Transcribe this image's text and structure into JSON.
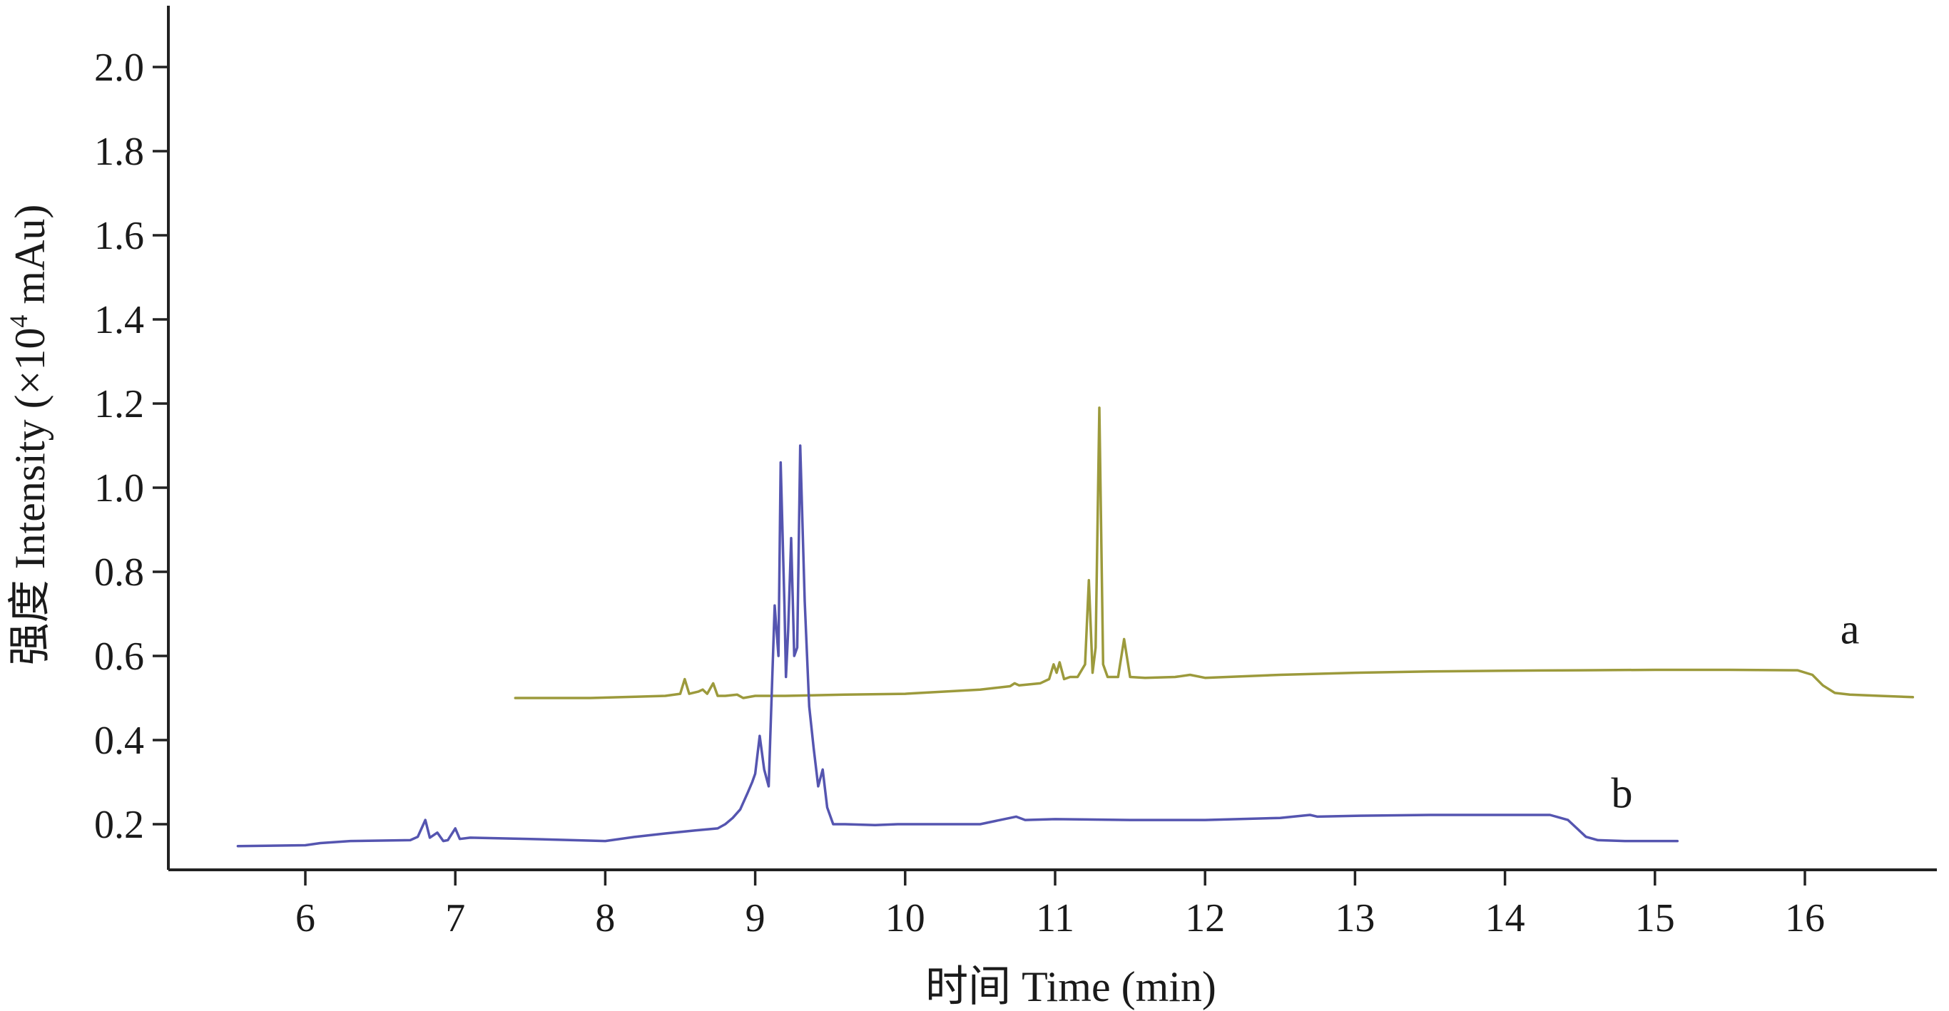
{
  "chart_data": {
    "type": "line",
    "xlabel": "时间 Time (min)",
    "ylabel_prefix": "强度 Intensity (×10",
    "ylabel_exponent": "4",
    "ylabel_suffix": " mAu)",
    "xlim": [
      5.3,
      16.9
    ],
    "ylim": [
      0.1,
      2.1
    ],
    "xticks": [
      6,
      7,
      8,
      9,
      10,
      11,
      12,
      13,
      14,
      15,
      16
    ],
    "xtick_labels": [
      "6",
      "7",
      "8",
      "9",
      "10",
      "11",
      "12",
      "13",
      "14",
      "15",
      "16"
    ],
    "yticks": [
      0.2,
      0.4,
      0.6,
      0.8,
      1.0,
      1.2,
      1.4,
      1.6,
      1.8,
      2.0
    ],
    "ytick_labels": [
      "0.2",
      "0.4",
      "0.6",
      "0.8",
      "1.0",
      "1.2",
      "1.4",
      "1.6",
      "1.8",
      "2.0"
    ],
    "grid": false,
    "legend": "none",
    "series": [
      {
        "label": "a",
        "label_position": [
          16.3,
          0.63
        ],
        "color": "#9c9a3c",
        "points": [
          [
            7.4,
            0.5
          ],
          [
            7.9,
            0.5
          ],
          [
            8.2,
            0.503
          ],
          [
            8.4,
            0.505
          ],
          [
            8.5,
            0.51
          ],
          [
            8.53,
            0.545
          ],
          [
            8.56,
            0.51
          ],
          [
            8.62,
            0.515
          ],
          [
            8.65,
            0.52
          ],
          [
            8.68,
            0.51
          ],
          [
            8.72,
            0.535
          ],
          [
            8.75,
            0.505
          ],
          [
            8.8,
            0.505
          ],
          [
            8.88,
            0.508
          ],
          [
            8.92,
            0.5
          ],
          [
            9.0,
            0.505
          ],
          [
            9.2,
            0.505
          ],
          [
            9.6,
            0.508
          ],
          [
            10.0,
            0.51
          ],
          [
            10.1,
            0.512
          ],
          [
            10.5,
            0.52
          ],
          [
            10.7,
            0.528
          ],
          [
            10.73,
            0.535
          ],
          [
            10.76,
            0.53
          ],
          [
            10.9,
            0.535
          ],
          [
            10.96,
            0.545
          ],
          [
            10.99,
            0.58
          ],
          [
            11.01,
            0.56
          ],
          [
            11.03,
            0.585
          ],
          [
            11.06,
            0.545
          ],
          [
            11.1,
            0.55
          ],
          [
            11.15,
            0.55
          ],
          [
            11.2,
            0.58
          ],
          [
            11.225,
            0.78
          ],
          [
            11.25,
            0.56
          ],
          [
            11.27,
            0.62
          ],
          [
            11.295,
            1.19
          ],
          [
            11.32,
            0.58
          ],
          [
            11.35,
            0.55
          ],
          [
            11.42,
            0.55
          ],
          [
            11.46,
            0.64
          ],
          [
            11.5,
            0.55
          ],
          [
            11.6,
            0.548
          ],
          [
            11.8,
            0.55
          ],
          [
            11.9,
            0.555
          ],
          [
            12.0,
            0.548
          ],
          [
            12.5,
            0.555
          ],
          [
            13.0,
            0.56
          ],
          [
            13.5,
            0.563
          ],
          [
            14.0,
            0.565
          ],
          [
            14.5,
            0.566
          ],
          [
            15.0,
            0.567
          ],
          [
            15.5,
            0.567
          ],
          [
            15.95,
            0.566
          ],
          [
            16.05,
            0.555
          ],
          [
            16.12,
            0.53
          ],
          [
            16.2,
            0.512
          ],
          [
            16.3,
            0.508
          ],
          [
            16.5,
            0.505
          ],
          [
            16.72,
            0.502
          ]
        ]
      },
      {
        "label": "b",
        "label_position": [
          14.78,
          0.24
        ],
        "color": "#5555b0",
        "points": [
          [
            5.55,
            0.148
          ],
          [
            6.0,
            0.15
          ],
          [
            6.1,
            0.155
          ],
          [
            6.3,
            0.16
          ],
          [
            6.7,
            0.162
          ],
          [
            6.75,
            0.17
          ],
          [
            6.8,
            0.21
          ],
          [
            6.83,
            0.168
          ],
          [
            6.88,
            0.18
          ],
          [
            6.92,
            0.16
          ],
          [
            6.95,
            0.162
          ],
          [
            7.0,
            0.19
          ],
          [
            7.03,
            0.165
          ],
          [
            7.1,
            0.168
          ],
          [
            7.5,
            0.165
          ],
          [
            8.0,
            0.16
          ],
          [
            8.2,
            0.17
          ],
          [
            8.4,
            0.178
          ],
          [
            8.6,
            0.185
          ],
          [
            8.75,
            0.19
          ],
          [
            8.8,
            0.2
          ],
          [
            8.85,
            0.215
          ],
          [
            8.9,
            0.235
          ],
          [
            8.95,
            0.275
          ],
          [
            8.98,
            0.3
          ],
          [
            9.0,
            0.32
          ],
          [
            9.03,
            0.41
          ],
          [
            9.06,
            0.33
          ],
          [
            9.09,
            0.29
          ],
          [
            9.1,
            0.4
          ],
          [
            9.13,
            0.72
          ],
          [
            9.155,
            0.6
          ],
          [
            9.17,
            1.06
          ],
          [
            9.195,
            0.72
          ],
          [
            9.205,
            0.55
          ],
          [
            9.22,
            0.66
          ],
          [
            9.24,
            0.88
          ],
          [
            9.26,
            0.6
          ],
          [
            9.28,
            0.62
          ],
          [
            9.3,
            1.1
          ],
          [
            9.33,
            0.73
          ],
          [
            9.36,
            0.48
          ],
          [
            9.39,
            0.38
          ],
          [
            9.42,
            0.29
          ],
          [
            9.45,
            0.33
          ],
          [
            9.48,
            0.24
          ],
          [
            9.52,
            0.2
          ],
          [
            9.6,
            0.2
          ],
          [
            9.8,
            0.198
          ],
          [
            9.95,
            0.2
          ],
          [
            10.0,
            0.2
          ],
          [
            10.5,
            0.2
          ],
          [
            10.74,
            0.218
          ],
          [
            10.8,
            0.21
          ],
          [
            11.0,
            0.212
          ],
          [
            11.5,
            0.21
          ],
          [
            12.0,
            0.21
          ],
          [
            12.5,
            0.215
          ],
          [
            12.7,
            0.222
          ],
          [
            12.75,
            0.218
          ],
          [
            13.0,
            0.22
          ],
          [
            13.5,
            0.222
          ],
          [
            14.0,
            0.222
          ],
          [
            14.3,
            0.222
          ],
          [
            14.42,
            0.21
          ],
          [
            14.48,
            0.19
          ],
          [
            14.54,
            0.17
          ],
          [
            14.62,
            0.162
          ],
          [
            14.8,
            0.16
          ],
          [
            15.15,
            0.16
          ]
        ]
      }
    ]
  }
}
